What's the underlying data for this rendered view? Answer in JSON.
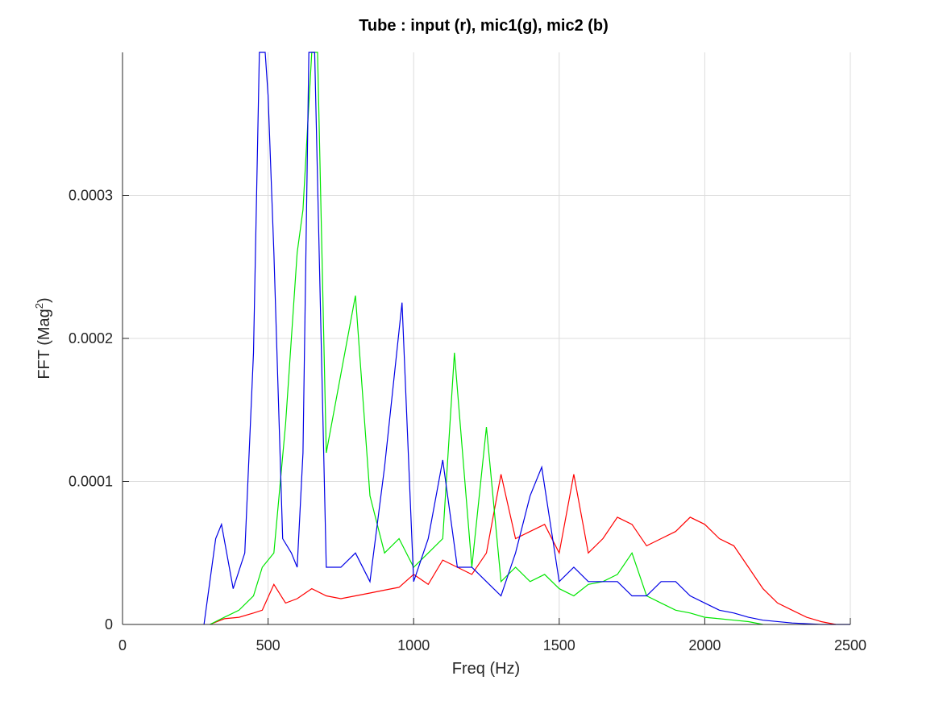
{
  "chart_data": {
    "type": "line",
    "title": "Tube : input (r), mic1(g), mic2 (b)",
    "xlabel": "Freq (Hz)",
    "ylabel_base": "FFT (Mag",
    "ylabel_sup": "2",
    "ylabel_end": ")",
    "xlim": [
      0,
      2500
    ],
    "ylim": [
      0,
      0.0004
    ],
    "xticks": [
      0,
      500,
      1000,
      1500,
      2000,
      2500
    ],
    "xtick_labels": [
      "0",
      "500",
      "1000",
      "1500",
      "2000",
      "2500"
    ],
    "yticks": [
      0,
      0.0001,
      0.0002,
      0.0003
    ],
    "ytick_labels": [
      "0",
      "0.0001",
      "0.0002",
      "0.0003"
    ],
    "grid": true,
    "series": [
      {
        "color": "#ff0000",
        "x": [
          300,
          350,
          400,
          450,
          480,
          520,
          560,
          600,
          650,
          700,
          750,
          800,
          850,
          900,
          950,
          1000,
          1050,
          1100,
          1150,
          1200,
          1250,
          1300,
          1350,
          1400,
          1450,
          1500,
          1550,
          1600,
          1650,
          1700,
          1750,
          1800,
          1850,
          1900,
          1950,
          2000,
          2050,
          2100,
          2150,
          2200,
          2250,
          2300,
          2350,
          2400,
          2450
        ],
        "y": [
          0.0,
          4e-06,
          5e-06,
          8e-06,
          1e-05,
          2.8e-05,
          1.5e-05,
          1.8e-05,
          2.5e-05,
          2e-05,
          1.8e-05,
          2e-05,
          2.2e-05,
          2.4e-05,
          2.6e-05,
          3.5e-05,
          2.8e-05,
          4.5e-05,
          4e-05,
          3.5e-05,
          5e-05,
          0.000105,
          6e-05,
          6.5e-05,
          7e-05,
          5e-05,
          0.000105,
          5e-05,
          6e-05,
          7.5e-05,
          7e-05,
          5.5e-05,
          6e-05,
          6.5e-05,
          7.5e-05,
          7e-05,
          6e-05,
          5.5e-05,
          4e-05,
          2.5e-05,
          1.5e-05,
          1e-05,
          5e-06,
          2e-06,
          0.0
        ]
      },
      {
        "color": "#00e600",
        "x": [
          300,
          350,
          400,
          450,
          480,
          520,
          560,
          600,
          620,
          650,
          670,
          700,
          750,
          800,
          850,
          900,
          950,
          1000,
          1050,
          1100,
          1140,
          1200,
          1250,
          1300,
          1350,
          1400,
          1450,
          1500,
          1550,
          1600,
          1650,
          1700,
          1750,
          1800,
          1850,
          1900,
          1950,
          2000,
          2050,
          2100,
          2150,
          2200
        ],
        "y": [
          0.0,
          5e-06,
          1e-05,
          2e-05,
          4e-05,
          5e-05,
          0.00014,
          0.00026,
          0.00029,
          0.0004,
          0.0004,
          0.00012,
          0.000175,
          0.00023,
          9e-05,
          5e-05,
          6e-05,
          4e-05,
          5e-05,
          6e-05,
          0.00019,
          4e-05,
          0.000138,
          3e-05,
          4e-05,
          3e-05,
          3.5e-05,
          2.5e-05,
          2e-05,
          2.8e-05,
          3e-05,
          3.5e-05,
          5e-05,
          2e-05,
          1.5e-05,
          1e-05,
          8e-06,
          5e-06,
          4e-06,
          3e-06,
          2e-06,
          0.0
        ]
      },
      {
        "color": "#0000e6",
        "x": [
          280,
          320,
          340,
          380,
          420,
          450,
          470,
          490,
          500,
          520,
          550,
          580,
          600,
          620,
          640,
          660,
          700,
          750,
          800,
          850,
          900,
          960,
          1000,
          1050,
          1100,
          1150,
          1200,
          1250,
          1300,
          1350,
          1400,
          1440,
          1500,
          1550,
          1600,
          1650,
          1700,
          1750,
          1800,
          1850,
          1900,
          1950,
          2000,
          2050,
          2100,
          2150,
          2200,
          2300,
          2400,
          2500
        ],
        "y": [
          0.0,
          6e-05,
          7e-05,
          2.5e-05,
          5e-05,
          0.00019,
          0.0004,
          0.0004,
          0.00037,
          0.00026,
          6e-05,
          5e-05,
          4e-05,
          0.00012,
          0.0004,
          0.0004,
          4e-05,
          4e-05,
          5e-05,
          3e-05,
          0.00011,
          0.000225,
          3e-05,
          6e-05,
          0.000115,
          4e-05,
          4e-05,
          3e-05,
          2e-05,
          5e-05,
          9e-05,
          0.00011,
          3e-05,
          4e-05,
          3e-05,
          3e-05,
          3e-05,
          2e-05,
          2e-05,
          3e-05,
          3e-05,
          2e-05,
          1.5e-05,
          1e-05,
          8e-06,
          5e-06,
          3e-06,
          1e-06,
          0.0,
          0.0
        ]
      }
    ]
  }
}
